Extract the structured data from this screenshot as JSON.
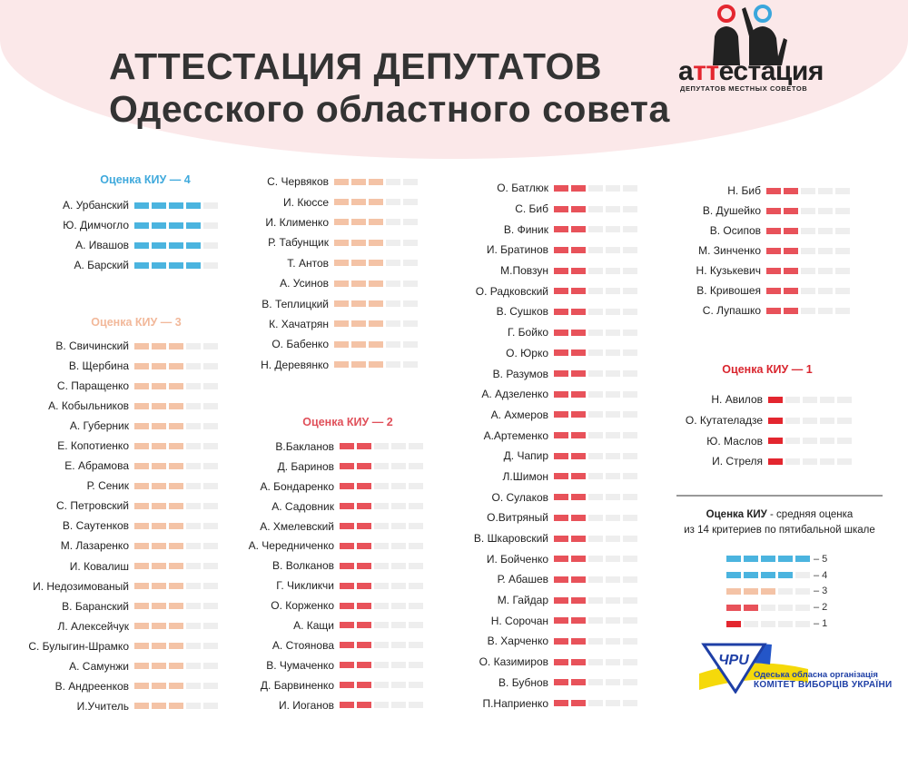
{
  "header": {
    "title_line1": "АТТЕСТАЦИЯ ДЕПУТАТОВ",
    "title_line2": "Одесского областного совета",
    "logo_word_a": "а",
    "logo_word_tt": "тт",
    "logo_word_rest": "естация",
    "logo_subtitle": "ДЕПУТАТОВ МЕСТНЫХ СОВЕТОВ"
  },
  "colors": {
    "5": "#4bb4df",
    "4": "#4bb4df",
    "3": "#f4c3a6",
    "2": "#e8525a",
    "1": "#e3262f",
    "empty": "#eeeeee",
    "background_blob": "#fbe8e9"
  },
  "groups": [
    {
      "id": "g4",
      "heading": "Оценка КИУ — 4",
      "score": 4,
      "names": [
        "А. Урбанский",
        "Ю. Димчогло",
        "А. Ивашов",
        "А. Барский"
      ]
    },
    {
      "id": "g3a",
      "heading": "Оценка КИУ — 3",
      "score": 3,
      "names": [
        "В. Свичинский",
        "В. Щербина",
        "С. Паращенко",
        "А. Кобыльников",
        "А. Губерник",
        "Е. Копотиенко",
        "Е. Абрамова",
        "Р. Сеник",
        "С. Петровский",
        "В. Саутенков",
        "М. Лазаренко",
        "И. Ковалиш",
        "И. Недозимованый",
        "В. Баранский",
        "Л. Алексейчук",
        "С. Булыгин-Шрамко",
        "А. Самунжи",
        "В. Андреенков",
        "И.Учитель"
      ]
    },
    {
      "id": "g3b",
      "score": 3,
      "names": [
        "С. Червяков",
        "И. Кюссе",
        "И. Клименко",
        "Р. Табунщик",
        "Т. Антов",
        "А. Усинов",
        "В. Теплицкий",
        "К. Хачатрян",
        "О. Бабенко",
        "Н. Деревянко"
      ]
    },
    {
      "id": "g2a",
      "heading": "Оценка КИУ — 2",
      "score": 2,
      "names": [
        "В.Бакланов",
        "Д. Баринов",
        "А. Бондаренко",
        "А. Садовник",
        "А. Хмелевский",
        "А. Чередниченко",
        "В. Волканов",
        "Г. Чикликчи",
        "О. Корженко",
        "А. Кащи",
        "А. Стоянова",
        "В. Чумаченко",
        "Д. Барвиненко",
        "И. Иоганов"
      ]
    },
    {
      "id": "g2b",
      "score": 2,
      "names": [
        "О. Батлюк",
        "С. Биб",
        "В. Финик",
        "И. Братинов",
        "М.Повзун",
        "О. Радковский",
        "В. Сушков",
        "Г. Бойко",
        "О. Юрко",
        "В. Разумов",
        "А. Адзеленко",
        "А. Ахмеров",
        "А.Артеменко",
        "Д. Чапир",
        "Л.Шимон",
        "О. Сулаков",
        "О.Витряный",
        "В. Шкаровский",
        "И. Бойченко",
        "Р. Абашев",
        "М. Гайдар",
        "Н. Сорочан",
        "В. Харченко",
        "О. Казимиров",
        "В. Бубнов",
        "П.Наприенко"
      ]
    },
    {
      "id": "g2c",
      "score": 2,
      "names": [
        "Н. Биб",
        "В. Душейко",
        "В. Осипов",
        "М. Зинченко",
        "Н. Кузькевич",
        "В. Кривошея",
        "С. Лупашко"
      ]
    },
    {
      "id": "g1",
      "heading": "Оценка КИУ — 1",
      "score": 1,
      "names": [
        "Н. Авилов",
        "О. Кутателадзе",
        "Ю. Маслов",
        "И. Стреля"
      ]
    }
  ],
  "legend": {
    "title": "Оценка КИУ",
    "description_1": " - средняя оценка",
    "description_2": "из 14 критериев по пятибальной шкале",
    "items": [
      {
        "score": 5,
        "label": "– 5"
      },
      {
        "score": 4,
        "label": "– 4"
      },
      {
        "score": 3,
        "label": "– 3"
      },
      {
        "score": 2,
        "label": "– 2"
      },
      {
        "score": 1,
        "label": "– 1"
      }
    ]
  },
  "footer_logo": {
    "emblem_text": "ЧРU",
    "line1": "Одеська обласна організація",
    "line2": "КОМІТЕТ ВИБОРЦІВ УКРАЇНИ"
  }
}
